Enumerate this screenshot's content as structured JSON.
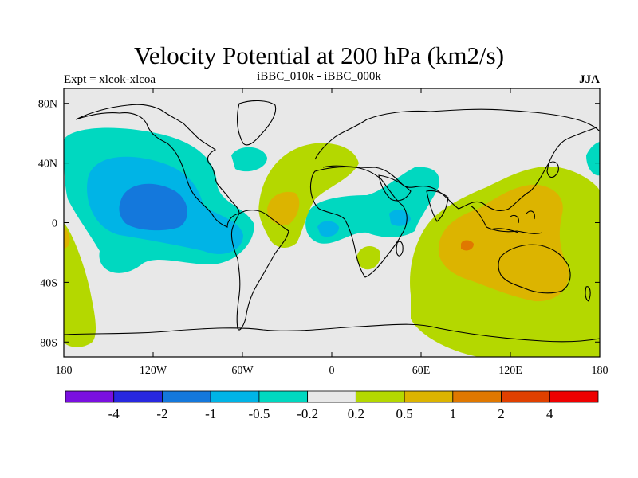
{
  "header": {
    "title": "Velocity Potential at 200 hPa (km2/s)",
    "left_string": "Expt = xlcok-xlcoa",
    "center_string": "iBBC_010k - iBBC_000k",
    "right_string": "JJA"
  },
  "axes": {
    "lon_ticks": [
      {
        "value": -180,
        "label": "180"
      },
      {
        "value": -120,
        "label": "120W"
      },
      {
        "value": -60,
        "label": "60W"
      },
      {
        "value": 0,
        "label": "0"
      },
      {
        "value": 60,
        "label": "60E"
      },
      {
        "value": 120,
        "label": "120E"
      },
      {
        "value": 180,
        "label": "180"
      }
    ],
    "lat_ticks": [
      {
        "value": 80,
        "label": "80N"
      },
      {
        "value": 40,
        "label": "40N"
      },
      {
        "value": 0,
        "label": "0"
      },
      {
        "value": -40,
        "label": "40S"
      },
      {
        "value": -80,
        "label": "80S"
      }
    ],
    "lon_range": [
      -180,
      180
    ],
    "lat_range": [
      -90,
      90
    ]
  },
  "colorbar": {
    "colors": [
      "#7a10e0",
      "#2828e0",
      "#1478dc",
      "#00b4e6",
      "#00d8c0",
      "#e8e8e8",
      "#b4d800",
      "#dcb400",
      "#e07800",
      "#e04000",
      "#ee0000"
    ],
    "labels": [
      "-4",
      "-2",
      "-1",
      "-0.5",
      "-0.2",
      "0.2",
      "0.5",
      "1",
      "2",
      "4"
    ]
  },
  "map_colors": {
    "ocean_background": "#e8e8e8",
    "coastline": "#000000"
  },
  "chart_data": {
    "type": "heatmap",
    "title": "Velocity Potential at 200 hPa (km2/s)",
    "projection": "cylindrical equidistant",
    "season": "JJA",
    "contour_levels": [
      -4,
      -2,
      -1,
      -0.5,
      -0.2,
      0.2,
      0.5,
      1,
      2,
      4
    ],
    "regions": [
      {
        "name": "eastern Pacific / Central America",
        "level": "-1 to -0.5",
        "center": [
          -115,
          10
        ]
      },
      {
        "name": "eastern North Pacific broad low",
        "level": "-0.5 to -0.2",
        "center": [
          -110,
          25
        ]
      },
      {
        "name": "equatorial Atlantic / Africa",
        "level": "-0.5 to -0.2",
        "center": [
          20,
          5
        ]
      },
      {
        "name": "Arabian Sea / East Africa",
        "level": "-0.5 to -0.2",
        "center": [
          50,
          15
        ]
      },
      {
        "name": "Maritime Continent / Australia",
        "level": "1 to 2",
        "center": [
          110,
          -15
        ]
      },
      {
        "name": "Indian Ocean / western Pacific",
        "level": "0.5 to 1",
        "center": [
          115,
          0
        ]
      },
      {
        "name": "Southern Ocean / Indo-Pacific",
        "level": "0.2 to 0.5",
        "center": [
          120,
          -40
        ]
      },
      {
        "name": "tropical Atlantic",
        "level": "0.5 to 1",
        "center": [
          -30,
          5
        ]
      },
      {
        "name": "South Pacific",
        "level": "0.2 to 0.5",
        "center": [
          -170,
          -40
        ]
      }
    ]
  }
}
